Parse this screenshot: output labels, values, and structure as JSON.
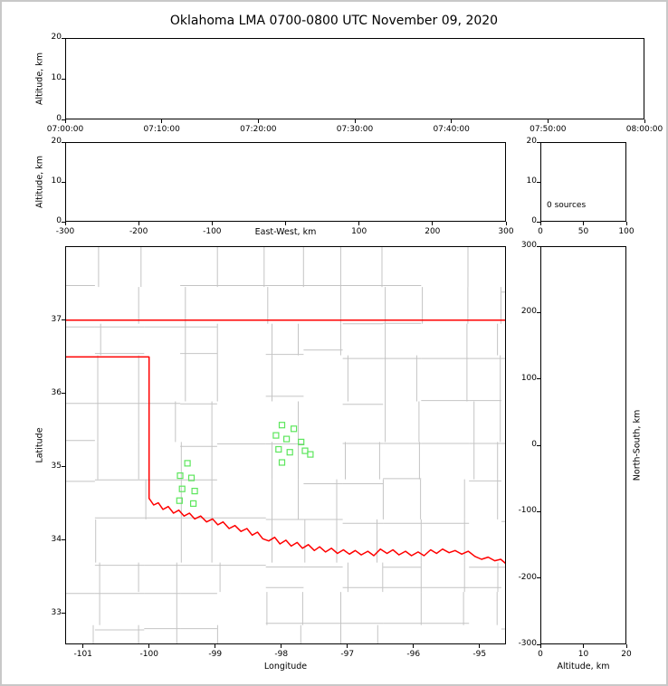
{
  "title": "Oklahoma LMA 0700-0800 UTC November 09, 2020",
  "colors": {
    "background": "#ffffff",
    "frame": "#c8c8c8",
    "axes": "#000000",
    "county_lines": "#c4c4c4",
    "state_border": "#ff0000",
    "station_marker": "#5ce65c"
  },
  "chart_data": [
    {
      "id": "time_height",
      "type": "scatter",
      "ylabel": "Altitude, km",
      "xticks": [
        "07:00:00",
        "07:10:00",
        "07:20:00",
        "07:30:00",
        "07:40:00",
        "07:50:00",
        "08:00:00"
      ],
      "yticks": [
        0,
        10,
        20
      ],
      "ylim": [
        0,
        20
      ],
      "points": []
    },
    {
      "id": "eastwest_height",
      "type": "scatter",
      "xlabel": "East-West, km",
      "ylabel": "Altitude, km",
      "xticks": [
        -300,
        -200,
        -100,
        0,
        100,
        200,
        300
      ],
      "yticks": [
        0,
        10,
        20
      ],
      "xlim": [
        -300,
        300
      ],
      "ylim": [
        0,
        20
      ],
      "points": []
    },
    {
      "id": "source_histogram",
      "type": "scatter",
      "annotation": "0 sources",
      "xticks": [
        0,
        50,
        100
      ],
      "yticks": [
        0,
        10,
        20
      ],
      "xlim": [
        0,
        100
      ],
      "ylim": [
        0,
        20
      ],
      "points": []
    },
    {
      "id": "plan_view_map",
      "type": "scatter",
      "xlabel": "Longitude",
      "ylabel": "Latitude",
      "xticks": [
        -101,
        -100,
        -99,
        -98,
        -97,
        -96,
        -95
      ],
      "yticks": [
        33,
        34,
        35,
        36,
        37
      ],
      "xlim": [
        -101.27,
        -94.6
      ],
      "ylim": [
        32.58,
        38.01
      ],
      "stations_lonlat": [
        [
          -99.42,
          35.05
        ],
        [
          -99.53,
          34.88
        ],
        [
          -99.36,
          34.85
        ],
        [
          -99.5,
          34.7
        ],
        [
          -99.31,
          34.67
        ],
        [
          -99.54,
          34.54
        ],
        [
          -99.33,
          34.5
        ],
        [
          -97.99,
          35.57
        ],
        [
          -97.81,
          35.52
        ],
        [
          -98.08,
          35.43
        ],
        [
          -97.92,
          35.38
        ],
        [
          -97.7,
          35.34
        ],
        [
          -98.04,
          35.24
        ],
        [
          -97.87,
          35.2
        ],
        [
          -97.64,
          35.22
        ],
        [
          -97.99,
          35.06
        ],
        [
          -97.56,
          35.17
        ]
      ],
      "state_border": {
        "north_lat": 37.0,
        "panhandle_south_lat": 36.5,
        "west_meridian_lon": -100.0,
        "red_river": [
          [
            -100.0,
            34.57
          ],
          [
            -99.93,
            34.48
          ],
          [
            -99.86,
            34.51
          ],
          [
            -99.79,
            34.42
          ],
          [
            -99.71,
            34.46
          ],
          [
            -99.63,
            34.37
          ],
          [
            -99.55,
            34.41
          ],
          [
            -99.47,
            34.33
          ],
          [
            -99.39,
            34.37
          ],
          [
            -99.31,
            34.29
          ],
          [
            -99.22,
            34.33
          ],
          [
            -99.13,
            34.25
          ],
          [
            -99.04,
            34.29
          ],
          [
            -98.96,
            34.21
          ],
          [
            -98.88,
            34.25
          ],
          [
            -98.79,
            34.16
          ],
          [
            -98.7,
            34.2
          ],
          [
            -98.61,
            34.12
          ],
          [
            -98.52,
            34.16
          ],
          [
            -98.44,
            34.07
          ],
          [
            -98.36,
            34.11
          ],
          [
            -98.28,
            34.02
          ],
          [
            -98.19,
            33.99
          ],
          [
            -98.1,
            34.04
          ],
          [
            -98.02,
            33.95
          ],
          [
            -97.93,
            34.0
          ],
          [
            -97.85,
            33.92
          ],
          [
            -97.76,
            33.97
          ],
          [
            -97.68,
            33.89
          ],
          [
            -97.59,
            33.94
          ],
          [
            -97.5,
            33.86
          ],
          [
            -97.42,
            33.91
          ],
          [
            -97.33,
            33.84
          ],
          [
            -97.24,
            33.89
          ],
          [
            -97.15,
            33.82
          ],
          [
            -97.06,
            33.87
          ],
          [
            -96.97,
            33.81
          ],
          [
            -96.88,
            33.86
          ],
          [
            -96.79,
            33.8
          ],
          [
            -96.69,
            33.85
          ],
          [
            -96.6,
            33.79
          ],
          [
            -96.5,
            33.88
          ],
          [
            -96.4,
            33.82
          ],
          [
            -96.31,
            33.87
          ],
          [
            -96.22,
            33.8
          ],
          [
            -96.12,
            33.85
          ],
          [
            -96.03,
            33.79
          ],
          [
            -95.93,
            33.84
          ],
          [
            -95.84,
            33.79
          ],
          [
            -95.74,
            33.87
          ],
          [
            -95.65,
            33.82
          ],
          [
            -95.56,
            33.88
          ],
          [
            -95.46,
            33.83
          ],
          [
            -95.37,
            33.86
          ],
          [
            -95.27,
            33.81
          ],
          [
            -95.17,
            33.85
          ],
          [
            -95.07,
            33.78
          ],
          [
            -94.97,
            33.74
          ],
          [
            -94.87,
            33.77
          ],
          [
            -94.77,
            33.72
          ],
          [
            -94.68,
            33.74
          ],
          [
            -94.6,
            33.68
          ]
        ]
      }
    },
    {
      "id": "northsouth_height",
      "type": "scatter",
      "xlabel": "Altitude, km",
      "ylabel_right": "North-South, km",
      "xticks": [
        0,
        10,
        20
      ],
      "yticks": [
        300,
        200,
        100,
        0,
        -100,
        -200,
        -300
      ],
      "xlim": [
        0,
        20
      ],
      "ylim": [
        -300,
        300
      ],
      "points": []
    }
  ]
}
